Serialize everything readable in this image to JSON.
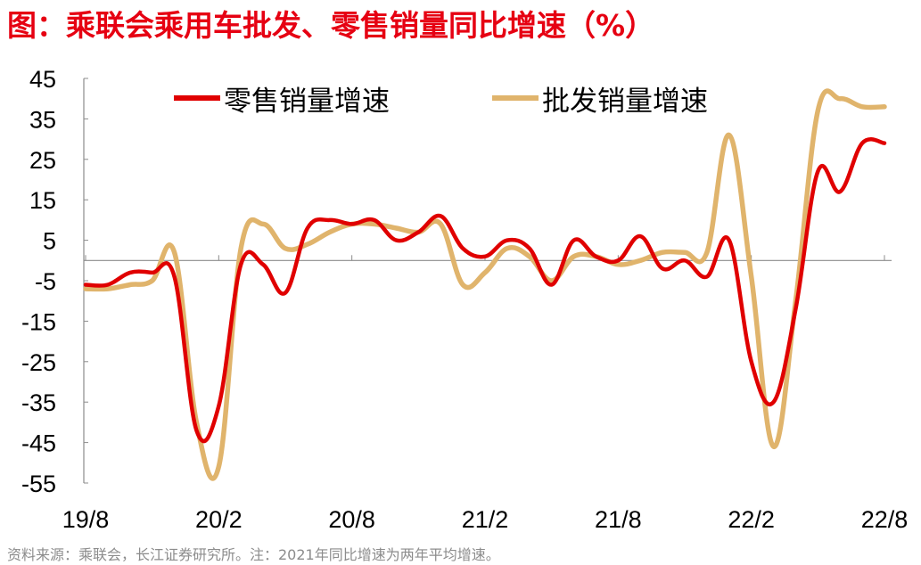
{
  "title": "图：乘联会乘用车批发、零售销量同比增速（%）",
  "source": "资料来源：乘联会，长江证券研究所。注：2021年同比增速为两年平均增速。",
  "colors": {
    "title": "#e60012",
    "retail": "#e00000",
    "wholesale": "#e0b46c",
    "axis": "#8c8c8c"
  },
  "chart_data": {
    "type": "line",
    "title": "图：乘联会乘用车批发、零售销量同比增速（%）",
    "xlabel": "",
    "ylabel": "",
    "ylim": [
      -55,
      45
    ],
    "yticks": [
      45,
      35,
      25,
      15,
      5,
      -5,
      -15,
      -25,
      -35,
      -45,
      -55
    ],
    "xtick_labels": [
      "19/8",
      "20/2",
      "20/8",
      "21/2",
      "21/8",
      "22/2",
      "22/8"
    ],
    "categories": [
      "19/8",
      "19/9",
      "19/10",
      "19/11",
      "19/12",
      "20/1",
      "20/2",
      "20/3",
      "20/4",
      "20/5",
      "20/6",
      "20/7",
      "20/8",
      "20/9",
      "20/10",
      "20/11",
      "20/12",
      "21/1",
      "21/2",
      "21/3",
      "21/4",
      "21/5",
      "21/6",
      "21/7",
      "21/8",
      "21/9",
      "21/10",
      "21/11",
      "21/12",
      "22/1",
      "22/2",
      "22/3",
      "22/4",
      "22/5",
      "22/6",
      "22/7",
      "22/8"
    ],
    "legend": "top",
    "grid": false,
    "series": [
      {
        "name": "零售销量增速",
        "values": [
          -6,
          -6,
          -3,
          -3,
          -4,
          -42,
          -36,
          -1,
          -1,
          -8,
          8,
          10,
          9,
          10,
          5,
          7,
          11,
          3,
          1,
          5,
          3,
          -6,
          5,
          1,
          0,
          6,
          -2,
          0,
          -4,
          5,
          -25,
          -35,
          -12,
          22,
          17,
          29,
          29
        ],
        "color": "#e00000"
      },
      {
        "name": "批发销量增速",
        "values": [
          -7,
          -7,
          -6,
          -5,
          2,
          -40,
          -51,
          3,
          9,
          3,
          4,
          7,
          9,
          9,
          8,
          7,
          9,
          -6,
          -3,
          3,
          1,
          -5,
          1,
          1,
          -1,
          0,
          2,
          2,
          2,
          31,
          -4,
          -46,
          -10,
          37,
          40,
          38,
          38
        ],
        "color": "#e0b46c"
      }
    ]
  }
}
